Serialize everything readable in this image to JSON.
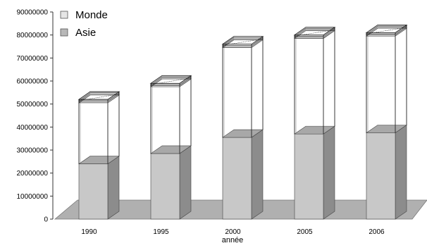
{
  "chart_data": {
    "type": "bar",
    "variant": "3d-overlapping-columns",
    "title": "",
    "xlabel": "année",
    "ylabel": "",
    "ylim": [
      0,
      90000000
    ],
    "yticks": [
      0,
      10000000,
      20000000,
      30000000,
      40000000,
      50000000,
      60000000,
      70000000,
      80000000,
      90000000
    ],
    "ytick_labels": [
      "0",
      "10000000",
      "20000000",
      "30000000",
      "40000000",
      "50000000",
      "60000000",
      "70000000",
      "80000000",
      "90000000"
    ],
    "categories": [
      "1990",
      "1995",
      "2000",
      "2005",
      "2006"
    ],
    "series": [
      {
        "name": "Monde",
        "values": [
          52000000,
          59000000,
          76000000,
          80000000,
          81000000
        ],
        "color": "#ffffff"
      },
      {
        "name": "Asie",
        "values": [
          24000000,
          28500000,
          35500000,
          37000000,
          37500000
        ],
        "color": "#c8c8c8"
      }
    ],
    "legend": {
      "position": "top-left",
      "entries": [
        "Monde",
        "Asie"
      ]
    },
    "grid": false,
    "colors": {
      "asie_front": "#c8c8c8",
      "asie_side": "#8c8c8c",
      "asie_top": "#a8a8a8",
      "floor": "#b0b0b0",
      "outline": "#444444"
    }
  }
}
